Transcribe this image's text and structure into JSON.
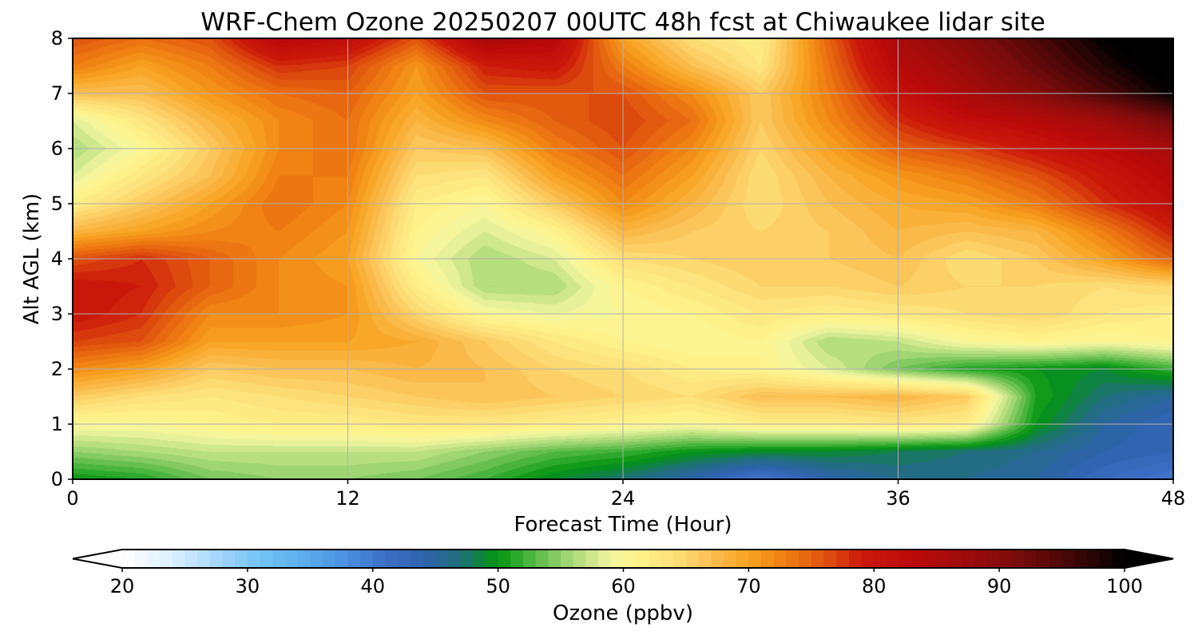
{
  "chart_data": {
    "type": "heatmap",
    "title": "WRF-Chem Ozone  20250207 00UTC 48h fcst at Chiwaukee lidar site",
    "xlabel": "Forecast Time (Hour)",
    "ylabel": "Alt AGL (km)",
    "xlim": [
      0,
      48
    ],
    "ylim": [
      0,
      8
    ],
    "x_ticks": [
      0,
      12,
      24,
      36,
      48
    ],
    "y_ticks": [
      0,
      1,
      2,
      3,
      4,
      5,
      6,
      7,
      8
    ],
    "grid": true,
    "x": [
      0,
      3,
      6,
      9,
      12,
      15,
      18,
      21,
      24,
      27,
      30,
      33,
      36,
      39,
      42,
      45,
      48
    ],
    "y": [
      0,
      0.5,
      1,
      1.5,
      2,
      2.5,
      3,
      3.5,
      4,
      4.5,
      5,
      5.5,
      6,
      6.5,
      7,
      7.5,
      8
    ],
    "z": [
      [
        50,
        51,
        54,
        55,
        55,
        54,
        52,
        49,
        47,
        44,
        40,
        44,
        46,
        46,
        45,
        42,
        40
      ],
      [
        55,
        56,
        57,
        57,
        57,
        57,
        55,
        53,
        52,
        50,
        49,
        49,
        48,
        47,
        46,
        44,
        43
      ],
      [
        60,
        60,
        61,
        62,
        62,
        63,
        63,
        62,
        61,
        60,
        62,
        62,
        63,
        62,
        50,
        45,
        43
      ],
      [
        66,
        64,
        63,
        64,
        65,
        66,
        67,
        66,
        65,
        64,
        67,
        67,
        68,
        66,
        51,
        47,
        45
      ],
      [
        72,
        70,
        66,
        67,
        67,
        68,
        67,
        65,
        64,
        62,
        61,
        58,
        54,
        51,
        50,
        49,
        52
      ],
      [
        77,
        76,
        70,
        70,
        70,
        69,
        66,
        63,
        61,
        60,
        61,
        56,
        57,
        60,
        61,
        60,
        61
      ],
      [
        80,
        78,
        72,
        72,
        71,
        65,
        60,
        59,
        60,
        61,
        63,
        62,
        63,
        64,
        65,
        63,
        62
      ],
      [
        80,
        79,
        75,
        72,
        71,
        62,
        56,
        56,
        61,
        63,
        65,
        65,
        66,
        65,
        65,
        64,
        65
      ],
      [
        76,
        78,
        75,
        72,
        70,
        60,
        56,
        58,
        64,
        65,
        66,
        66,
        67,
        64,
        66,
        70,
        75
      ],
      [
        68,
        70,
        72,
        73,
        71,
        61,
        58,
        61,
        68,
        66,
        65,
        66,
        68,
        67,
        68,
        73,
        79
      ],
      [
        62,
        66,
        70,
        74,
        72,
        62,
        60,
        66,
        72,
        68,
        64,
        67,
        69,
        70,
        73,
        78,
        82
      ],
      [
        58,
        63,
        67,
        73,
        73,
        64,
        63,
        70,
        74,
        70,
        64,
        68,
        71,
        73,
        76,
        80,
        84
      ],
      [
        56,
        60,
        66,
        72,
        74,
        66,
        67,
        73,
        76,
        72,
        65,
        70,
        75,
        77,
        80,
        83,
        86
      ],
      [
        58,
        63,
        68,
        72,
        74,
        68,
        72,
        75,
        77,
        74,
        66,
        72,
        78,
        82,
        84,
        87,
        92
      ],
      [
        67,
        67,
        71,
        74,
        75,
        70,
        76,
        76,
        76,
        72,
        66,
        73,
        81,
        86,
        90,
        95,
        100
      ],
      [
        73,
        70,
        73,
        78,
        77,
        71,
        79,
        80,
        73,
        67,
        63,
        74,
        84,
        88,
        93,
        98,
        102
      ],
      [
        76,
        74,
        76,
        84,
        82,
        76,
        86,
        84,
        70,
        64,
        62,
        75,
        86,
        90,
        95,
        100,
        104
      ]
    ],
    "colorbar": {
      "label": "Ozone  (ppbv)",
      "min": 20,
      "max": 100,
      "ticks": [
        20,
        30,
        40,
        50,
        60,
        70,
        80,
        90,
        100
      ],
      "extend": "both",
      "stops": [
        {
          "value": 20,
          "color": "#ffffff"
        },
        {
          "value": 24,
          "color": "#dcefff"
        },
        {
          "value": 28,
          "color": "#9fd4fb"
        },
        {
          "value": 31,
          "color": "#72c3f5"
        },
        {
          "value": 35,
          "color": "#5aa9e9"
        },
        {
          "value": 38,
          "color": "#4a8ee0"
        },
        {
          "value": 41,
          "color": "#3c6fc6"
        },
        {
          "value": 44,
          "color": "#2f62ad"
        },
        {
          "value": 47,
          "color": "#1f6f7a"
        },
        {
          "value": 49,
          "color": "#0a8a2e"
        },
        {
          "value": 50,
          "color": "#039410"
        },
        {
          "value": 52,
          "color": "#3aae35"
        },
        {
          "value": 55,
          "color": "#93d06b"
        },
        {
          "value": 57,
          "color": "#c4e486"
        },
        {
          "value": 59,
          "color": "#f2f5a0"
        },
        {
          "value": 61,
          "color": "#fff48c"
        },
        {
          "value": 64,
          "color": "#fde07a"
        },
        {
          "value": 67,
          "color": "#fbbf52"
        },
        {
          "value": 70,
          "color": "#f7a220"
        },
        {
          "value": 73,
          "color": "#ee7d12"
        },
        {
          "value": 76,
          "color": "#e0530d"
        },
        {
          "value": 79,
          "color": "#cb1a0a"
        },
        {
          "value": 83,
          "color": "#bc0a0a"
        },
        {
          "value": 87,
          "color": "#a00b0b"
        },
        {
          "value": 91,
          "color": "#7e0c0c"
        },
        {
          "value": 95,
          "color": "#4c0707"
        },
        {
          "value": 98,
          "color": "#200404"
        },
        {
          "value": 100,
          "color": "#000000"
        }
      ]
    }
  }
}
